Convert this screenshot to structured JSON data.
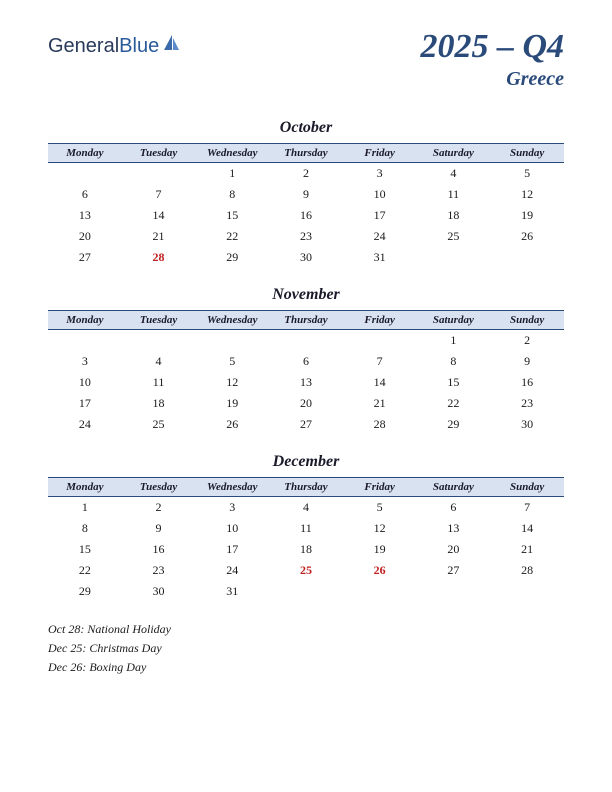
{
  "brand": {
    "part1": "General",
    "part2": "Blue"
  },
  "title": {
    "main": "2025 – Q4",
    "sub": "Greece"
  },
  "colors": {
    "brand_text": "#2a3a5a",
    "brand_blue": "#2a5a9a",
    "title_color": "#2a4a7a",
    "header_bg": "#d8e2f0",
    "header_border": "#2a4a7a",
    "text": "#1a1a1a",
    "holiday": "#c02020",
    "background": "#ffffff"
  },
  "day_headers": [
    "Monday",
    "Tuesday",
    "Wednesday",
    "Thursday",
    "Friday",
    "Saturday",
    "Sunday"
  ],
  "months": [
    {
      "name": "October",
      "weeks": [
        [
          "",
          "",
          "1",
          "2",
          "3",
          "4",
          "5"
        ],
        [
          "6",
          "7",
          "8",
          "9",
          "10",
          "11",
          "12"
        ],
        [
          "13",
          "14",
          "15",
          "16",
          "17",
          "18",
          "19"
        ],
        [
          "20",
          "21",
          "22",
          "23",
          "24",
          "25",
          "26"
        ],
        [
          "27",
          "28",
          "29",
          "30",
          "31",
          "",
          ""
        ]
      ],
      "holidays": [
        [
          4,
          1
        ]
      ]
    },
    {
      "name": "November",
      "weeks": [
        [
          "",
          "",
          "",
          "",
          "",
          "1",
          "2"
        ],
        [
          "3",
          "4",
          "5",
          "6",
          "7",
          "8",
          "9"
        ],
        [
          "10",
          "11",
          "12",
          "13",
          "14",
          "15",
          "16"
        ],
        [
          "17",
          "18",
          "19",
          "20",
          "21",
          "22",
          "23"
        ],
        [
          "24",
          "25",
          "26",
          "27",
          "28",
          "29",
          "30"
        ]
      ],
      "holidays": []
    },
    {
      "name": "December",
      "weeks": [
        [
          "1",
          "2",
          "3",
          "4",
          "5",
          "6",
          "7"
        ],
        [
          "8",
          "9",
          "10",
          "11",
          "12",
          "13",
          "14"
        ],
        [
          "15",
          "16",
          "17",
          "18",
          "19",
          "20",
          "21"
        ],
        [
          "22",
          "23",
          "24",
          "25",
          "26",
          "27",
          "28"
        ],
        [
          "29",
          "30",
          "31",
          "",
          "",
          "",
          ""
        ]
      ],
      "holidays": [
        [
          3,
          3
        ],
        [
          3,
          4
        ]
      ]
    }
  ],
  "holiday_list": [
    "Oct 28: National Holiday",
    "Dec 25: Christmas Day",
    "Dec 26: Boxing Day"
  ]
}
